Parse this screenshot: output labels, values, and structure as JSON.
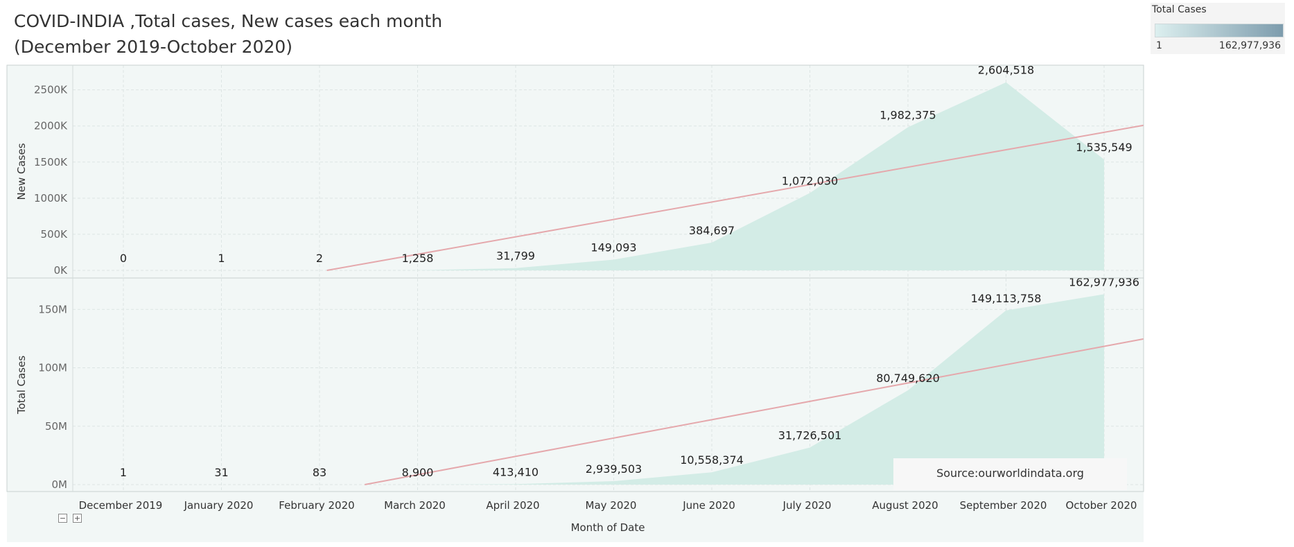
{
  "title": {
    "line1": "COVID-INDIA ,Total cases, New cases each month",
    "line2": "(December 2019-October 2020)"
  },
  "legend": {
    "title": "Total Cases",
    "min_label": "1",
    "max_label": "162,977,936",
    "color_low": "#dcefef",
    "color_high": "#7d9cad"
  },
  "source": "Source:ourworldindata.org",
  "colors": {
    "area_fill": "#d3ece6",
    "trend_line": "#e5a8ac",
    "panel_bg": "#f2f7f6",
    "grid": "#dde5e4"
  },
  "controls": {
    "collapse_icon": "minus-box-icon",
    "expand_icon": "plus-box-icon"
  },
  "chart_data": {
    "type": "area",
    "xlabel": "Month of Date",
    "categories": [
      "December 2019",
      "January 2020",
      "February 2020",
      "March 2020",
      "April 2020",
      "May 2020",
      "June 2020",
      "July 2020",
      "August 2020",
      "September 2020",
      "October 2020"
    ],
    "panels": [
      {
        "ylabel": "New Cases",
        "values": [
          0,
          1,
          2,
          1258,
          31799,
          149093,
          384697,
          1072030,
          1982375,
          2604518,
          1535549
        ],
        "labels": [
          "0",
          "1",
          "2",
          "1,258",
          "31,799",
          "149,093",
          "384,697",
          "1,072,030",
          "1,982,375",
          "2,604,518",
          "1,535,549"
        ],
        "ylim": [
          0,
          2650000
        ],
        "yticks": [
          0,
          500000,
          1000000,
          1500000,
          2000000,
          2500000
        ],
        "ytick_labels": [
          "0K",
          "500K",
          "1000K",
          "1500K",
          "2000K",
          "2500K"
        ],
        "trend_line": true
      },
      {
        "ylabel": "Total Cases",
        "values": [
          1,
          31,
          83,
          8900,
          413410,
          2939503,
          10558374,
          31726501,
          80749620,
          149113758,
          162977936
        ],
        "labels": [
          "1",
          "31",
          "83",
          "8,900",
          "413,410",
          "2,939,503",
          "10,558,374",
          "31,726,501",
          "80,749,620",
          "149,113,758",
          "162,977,936"
        ],
        "ylim": [
          0,
          165000000
        ],
        "yticks": [
          0,
          50000000,
          100000000,
          150000000
        ],
        "ytick_labels": [
          "0M",
          "50M",
          "100M",
          "150M"
        ],
        "trend_line": true
      }
    ],
    "grid": true,
    "legend_position": "top-right"
  }
}
